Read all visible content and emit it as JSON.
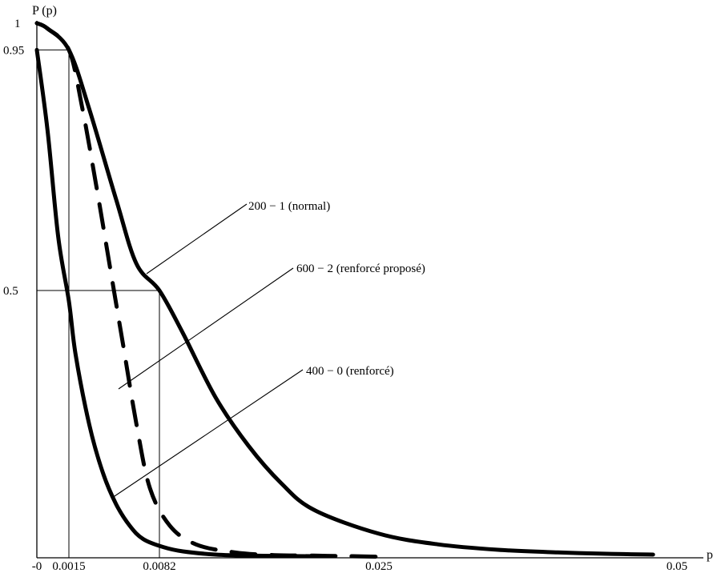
{
  "chart_data": {
    "type": "line",
    "title": "",
    "xlabel": "p",
    "ylabel": "P (p)",
    "xlim": [
      0,
      0.05
    ],
    "ylim": [
      0,
      1
    ],
    "grid": false,
    "legend": "leader-line labels",
    "x_ticks": [
      {
        "value": 0,
        "label": "-0"
      },
      {
        "value": 0.0015,
        "label": "0.0015"
      },
      {
        "value": 0.0082,
        "label": "0.0082"
      },
      {
        "value": 0.025,
        "label": "0.025"
      },
      {
        "value": 0.05,
        "label": "0.05"
      }
    ],
    "y_ticks": [
      {
        "value": 0.5,
        "label": "0.5"
      },
      {
        "value": 0.95,
        "label": "0.95"
      },
      {
        "value": 1,
        "label": "1"
      }
    ],
    "reference_lines": [
      {
        "p": 0.0015,
        "P": 0.95
      },
      {
        "p": 0.0082,
        "P": 0.5
      }
    ],
    "series": [
      {
        "name": "200 − 1 (normal)",
        "style": "solid",
        "color": "#000000",
        "x": [
          0,
          0.0005,
          0.0015,
          0.003,
          0.005,
          0.0065,
          0.0082,
          0.01,
          0.0125,
          0.015,
          0.0175,
          0.02,
          0.025,
          0.03,
          0.035,
          0.04,
          0.045,
          0.048
        ],
        "y": [
          1,
          0.99,
          0.95,
          0.84,
          0.67,
          0.55,
          0.5,
          0.42,
          0.3,
          0.21,
          0.14,
          0.09,
          0.045,
          0.025,
          0.015,
          0.01,
          0.007,
          0.006
        ]
      },
      {
        "name": "600 − 2 (renforcé proposé)",
        "style": "dashed",
        "color": "#000000",
        "x": [
          0,
          0.0005,
          0.0015,
          0.0025,
          0.0035,
          0.0045,
          0.0055,
          0.0065,
          0.0075,
          0.009,
          0.011,
          0.014,
          0.017,
          0.02,
          0.023,
          0.025
        ],
        "y": [
          1,
          0.99,
          0.95,
          0.84,
          0.7,
          0.55,
          0.4,
          0.25,
          0.13,
          0.06,
          0.025,
          0.01,
          0.005,
          0.004,
          0.003,
          0.002
        ]
      },
      {
        "name": "400 − 0 (renforcé)",
        "style": "solid",
        "color": "#000000",
        "x": [
          0,
          0.0005,
          0.001,
          0.0015,
          0.002,
          0.003,
          0.004,
          0.005,
          0.006,
          0.007,
          0.0085,
          0.01,
          0.0125,
          0.015,
          0.02
        ],
        "y": [
          0.95,
          0.8,
          0.6,
          0.48,
          0.38,
          0.25,
          0.16,
          0.1,
          0.06,
          0.035,
          0.02,
          0.012,
          0.006,
          0.004,
          0.003
        ]
      }
    ]
  }
}
